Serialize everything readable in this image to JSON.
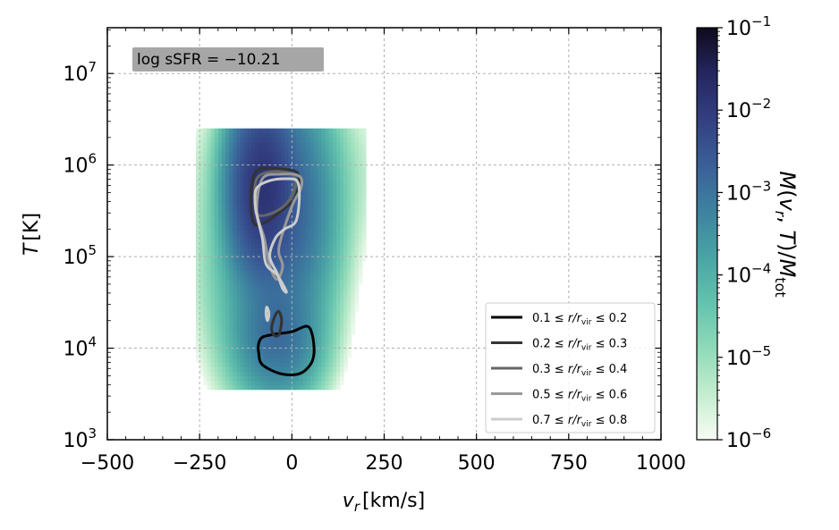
{
  "chart_data": {
    "type": "heatmap",
    "annotation": "log sSFR = −10.21",
    "xlabel": {
      "var": "v",
      "sub": "r",
      "unit": "[km/s]"
    },
    "ylabel": {
      "var": "T",
      "unit": "[K]"
    },
    "xlim": [
      -500,
      1000
    ],
    "ylim_log10": [
      3,
      7.5
    ],
    "x_ticks": [
      -500,
      -250,
      0,
      250,
      500,
      750,
      1000
    ],
    "x_tick_labels": [
      "−500",
      "−250",
      "0",
      "250",
      "500",
      "750",
      "1000"
    ],
    "y_ticks_log10": [
      3,
      4,
      5,
      6,
      7
    ],
    "y_tick_labels": [
      {
        "base": "10",
        "exp": "3"
      },
      {
        "base": "10",
        "exp": "4"
      },
      {
        "base": "10",
        "exp": "5"
      },
      {
        "base": "10",
        "exp": "6"
      },
      {
        "base": "10",
        "exp": "7"
      }
    ],
    "grid": true,
    "colorbar": {
      "scale": "log",
      "range_log10": [
        -6,
        -1
      ],
      "colormap": [
        "#f7fcf3",
        "#c4edcf",
        "#8fdab9",
        "#63c2ad",
        "#4aa3a4",
        "#3d82a0",
        "#3a5f98",
        "#333f82",
        "#242660",
        "#100a1c"
      ],
      "tick_labels": [
        {
          "base": "10",
          "exp": "−1"
        },
        {
          "base": "10",
          "exp": "−2"
        },
        {
          "base": "10",
          "exp": "−3"
        },
        {
          "base": "10",
          "exp": "−4"
        },
        {
          "base": "10",
          "exp": "−5"
        },
        {
          "base": "10",
          "exp": "−6"
        }
      ],
      "label": "M(v_r, T)/M_tot"
    },
    "heatmap_blobs": [
      {
        "vr": -80,
        "logT": 5.75,
        "svr": 38,
        "slogT": 0.42,
        "amp_log10": -1.9
      },
      {
        "vr": -20,
        "logT": 5.55,
        "svr": 55,
        "slogT": 0.55,
        "amp_log10": -2.7
      },
      {
        "vr": -40,
        "logT": 4.15,
        "svr": 50,
        "slogT": 0.3,
        "amp_log10": -2.9
      },
      {
        "vr": -60,
        "logT": 4.9,
        "svr": 70,
        "slogT": 0.6,
        "amp_log10": -3.6
      },
      {
        "vr": -20,
        "logT": 5.9,
        "svr": 110,
        "slogT": 0.45,
        "amp_log10": -4.6
      }
    ],
    "legend": {
      "position": "lower-right",
      "entries": [
        {
          "label": "0.1 ≤ r/r_vir ≤ 0.2",
          "color": "#000000"
        },
        {
          "label": "0.2 ≤ r/r_vir ≤ 0.3",
          "color": "#333333"
        },
        {
          "label": "0.3 ≤ r/r_vir ≤ 0.4",
          "color": "#666666"
        },
        {
          "label": "0.5 ≤ r/r_vir ≤ 0.6",
          "color": "#999999"
        },
        {
          "label": "0.7 ≤ r/r_vir ≤ 0.8",
          "color": "#cccccc"
        }
      ]
    },
    "contours": [
      {
        "name": "0.1 ≤ r/r_vir ≤ 0.2",
        "color": "#000000",
        "points": [
          [
            -90,
            4.05
          ],
          [
            -80,
            4.12
          ],
          [
            -50,
            4.15
          ],
          [
            0,
            4.18
          ],
          [
            40,
            4.24
          ],
          [
            55,
            4.15
          ],
          [
            60,
            3.95
          ],
          [
            50,
            3.82
          ],
          [
            20,
            3.72
          ],
          [
            -30,
            3.72
          ],
          [
            -80,
            3.82
          ],
          [
            -90,
            3.95
          ]
        ]
      },
      {
        "name": "0.2 ≤ r/r_vir ≤ 0.3",
        "color": "#333333",
        "points": [
          [
            -55,
            4.22
          ],
          [
            -45,
            4.36
          ],
          [
            -35,
            4.4
          ],
          [
            -28,
            4.3
          ],
          [
            -35,
            4.15
          ],
          [
            -48,
            4.14
          ]
        ]
      },
      {
        "name": "0.2 ≤ r/r_vir ≤ 0.3",
        "color": "#333333",
        "points": [
          [
            -110,
            5.5
          ],
          [
            -108,
            5.8
          ],
          [
            -90,
            5.95
          ],
          [
            -40,
            5.96
          ],
          [
            10,
            5.93
          ],
          [
            20,
            5.82
          ],
          [
            5,
            5.62
          ],
          [
            -35,
            5.48
          ],
          [
            -70,
            5.38
          ],
          [
            -100,
            5.35
          ]
        ]
      },
      {
        "name": "0.3 ≤ r/r_vir ≤ 0.4",
        "color": "#666666",
        "points": [
          [
            -100,
            5.55
          ],
          [
            -95,
            5.85
          ],
          [
            -50,
            5.93
          ],
          [
            0,
            5.9
          ],
          [
            10,
            5.8
          ],
          [
            -10,
            5.6
          ],
          [
            -50,
            5.48
          ],
          [
            -90,
            5.45
          ]
        ]
      },
      {
        "name": "0.5 ≤ r/r_vir ≤ 0.6",
        "color": "#999999",
        "points": [
          [
            -95,
            5.5
          ],
          [
            -80,
            5.85
          ],
          [
            -30,
            5.9
          ],
          [
            20,
            5.88
          ],
          [
            25,
            5.75
          ],
          [
            0,
            5.55
          ],
          [
            -35,
            5.1
          ],
          [
            -25,
            4.9
          ],
          [
            -40,
            4.75
          ],
          [
            -60,
            4.9
          ],
          [
            -75,
            5.2
          ]
        ]
      },
      {
        "name": "0.7 ≤ r/r_vir ≤ 0.8",
        "color": "#cccccc",
        "points": [
          [
            -100,
            5.6
          ],
          [
            -95,
            5.75
          ],
          [
            -60,
            5.83
          ],
          [
            -15,
            5.85
          ],
          [
            15,
            5.82
          ],
          [
            20,
            5.62
          ],
          [
            10,
            5.38
          ],
          [
            -20,
            5.3
          ],
          [
            -45,
            5.2
          ],
          [
            -60,
            5.0
          ],
          [
            -40,
            4.82
          ],
          [
            -25,
            4.65
          ],
          [
            -15,
            4.62
          ],
          [
            -40,
            4.8
          ],
          [
            -70,
            4.92
          ],
          [
            -80,
            5.2
          ],
          [
            -95,
            5.45
          ]
        ]
      },
      {
        "name": "0.7 ≤ r/r_vir ≤ 0.8",
        "color": "#cccccc",
        "points": [
          [
            -70,
            4.38
          ],
          [
            -68,
            4.45
          ],
          [
            -62,
            4.38
          ],
          [
            -66,
            4.3
          ]
        ]
      }
    ]
  }
}
